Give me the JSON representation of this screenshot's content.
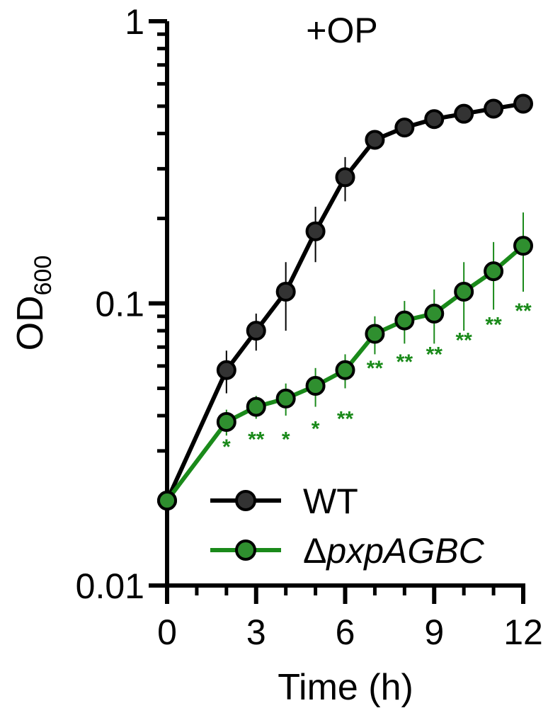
{
  "chart_data": {
    "type": "line",
    "title": "+OP",
    "xlabel": "Time (h)",
    "ylabel": {
      "main": "OD",
      "sub": "600"
    },
    "xlim": [
      0,
      12
    ],
    "ylim": [
      0.01,
      1
    ],
    "yscale": "log",
    "xticks": [
      0,
      3,
      6,
      9,
      12
    ],
    "xtick_labels": [
      "0",
      "3",
      "6",
      "9",
      "12"
    ],
    "xminor_ticks": [
      1,
      2,
      4,
      5,
      7,
      8,
      10,
      11
    ],
    "yticks": [
      0.01,
      0.1,
      1
    ],
    "ytick_labels": [
      "0.01",
      "0.1",
      "1"
    ],
    "legend_position": "bottom-right",
    "series": [
      {
        "name": "WT",
        "color": "#000000",
        "marker_fill": "#333333",
        "x": [
          0,
          2,
          3,
          4,
          5,
          6,
          7,
          8,
          9,
          10,
          11,
          12
        ],
        "y": [
          0.02,
          0.058,
          0.08,
          0.11,
          0.18,
          0.28,
          0.38,
          0.42,
          0.45,
          0.47,
          0.49,
          0.51
        ],
        "err": [
          0,
          0.01,
          0.012,
          0.03,
          0.04,
          0.05,
          0.02,
          0.015,
          0.015,
          0.015,
          0.015,
          0.015
        ]
      },
      {
        "name": "ΔpxpAGBC",
        "name_prefix": "Δ",
        "name_italic": "pxpAGBC",
        "color": "#1a8a1a",
        "marker_fill": "#2f8f2f",
        "x": [
          0,
          2,
          3,
          4,
          5,
          6,
          7,
          8,
          9,
          10,
          11,
          12
        ],
        "y": [
          0.02,
          0.038,
          0.043,
          0.046,
          0.051,
          0.058,
          0.078,
          0.087,
          0.092,
          0.11,
          0.13,
          0.16
        ],
        "err": [
          0,
          0.004,
          0.004,
          0.006,
          0.008,
          0.008,
          0.012,
          0.015,
          0.02,
          0.03,
          0.035,
          0.05
        ]
      }
    ],
    "annotations": [
      {
        "x": 2,
        "y": 0.031,
        "text": "*"
      },
      {
        "x": 3,
        "y": 0.033,
        "text": "**"
      },
      {
        "x": 4,
        "y": 0.033,
        "text": "*"
      },
      {
        "x": 5,
        "y": 0.036,
        "text": "*"
      },
      {
        "x": 6,
        "y": 0.039,
        "text": "**"
      },
      {
        "x": 7,
        "y": 0.059,
        "text": "**"
      },
      {
        "x": 8,
        "y": 0.062,
        "text": "**"
      },
      {
        "x": 9,
        "y": 0.066,
        "text": "**"
      },
      {
        "x": 10,
        "y": 0.074,
        "text": "**"
      },
      {
        "x": 11,
        "y": 0.084,
        "text": "**"
      },
      {
        "x": 12,
        "y": 0.094,
        "text": "**"
      }
    ]
  }
}
